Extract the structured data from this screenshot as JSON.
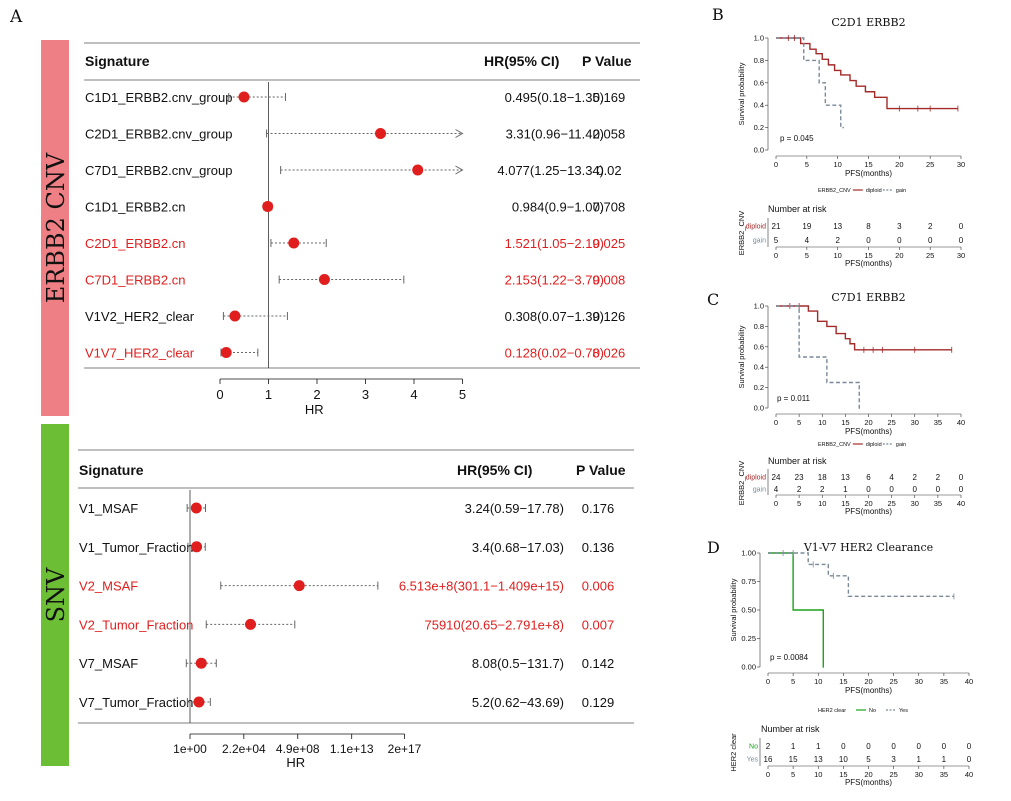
{
  "panels": {
    "A": "A",
    "B": "B",
    "C": "C",
    "D": "D"
  },
  "colors": {
    "red": "#e01e1e",
    "pink_bar": "#ee7f84",
    "green_bar": "#6cbf35",
    "km_red": "#a42a2a",
    "km_gray": "#7a8a99",
    "km_green": "#1aa21a"
  },
  "forest_cnv": {
    "side_label": "ERBB2 CNV",
    "header": {
      "signature": "Signature",
      "hr": "HR(95% CI)",
      "p": "P Value"
    },
    "rows": [
      {
        "label": "C1D1_ERBB2.cnv_group",
        "hr_text": "0.495(0.18−1.35)",
        "p": "0.169",
        "red": false,
        "hr": 0.495,
        "lo": 0.18,
        "hi": 1.35,
        "arrow": false
      },
      {
        "label": "C2D1_ERBB2.cnv_group",
        "hr_text": "3.31(0.96−11.42)",
        "p": "0.058",
        "red": false,
        "hr": 3.31,
        "lo": 0.96,
        "hi": 11.42,
        "arrow": true
      },
      {
        "label": "C7D1_ERBB2.cnv_group",
        "hr_text": "4.077(1.25−13.34)",
        "p": "0.02",
        "red": false,
        "hr": 4.077,
        "lo": 1.25,
        "hi": 13.34,
        "arrow": true
      },
      {
        "label": "C1D1_ERBB2.cn",
        "hr_text": "0.984(0.9−1.07)",
        "p": "0.708",
        "red": false,
        "hr": 0.984,
        "lo": 0.9,
        "hi": 1.07,
        "arrow": false
      },
      {
        "label": "C2D1_ERBB2.cn",
        "hr_text": "1.521(1.05−2.19)",
        "p": "0.025",
        "red": true,
        "hr": 1.521,
        "lo": 1.05,
        "hi": 2.19,
        "arrow": false
      },
      {
        "label": "C7D1_ERBB2.cn",
        "hr_text": "2.153(1.22−3.79)",
        "p": "0.008",
        "red": true,
        "hr": 2.153,
        "lo": 1.22,
        "hi": 3.79,
        "arrow": false
      },
      {
        "label": "V1V2_HER2_clear",
        "hr_text": "0.308(0.07−1.39)",
        "p": "0.126",
        "red": false,
        "hr": 0.308,
        "lo": 0.07,
        "hi": 1.39,
        "arrow": false
      },
      {
        "label": "V1V7_HER2_clear",
        "hr_text": "0.128(0.02−0.78)",
        "p": "0.026",
        "red": true,
        "hr": 0.128,
        "lo": 0.02,
        "hi": 0.78,
        "arrow": false
      }
    ],
    "axis": {
      "ticks": [
        "0",
        "1",
        "2",
        "3",
        "4",
        "5"
      ],
      "xlabel": "HR",
      "xlim": [
        0,
        5
      ],
      "ref": 1
    }
  },
  "forest_snv": {
    "side_label": "SNV",
    "header": {
      "signature": "Signature",
      "hr": "HR(95% CI)",
      "p": "P Value"
    },
    "rows": [
      {
        "label": "V1_MSAF",
        "hr_text": "3.24(0.59−17.78)",
        "p": "0.176",
        "red": false,
        "log10_hr": 0.51,
        "log10_lo": -0.23,
        "log10_hi": 1.25
      },
      {
        "label": "V1_Tumor_Fraction",
        "hr_text": "3.4(0.68−17.03)",
        "p": "0.136",
        "red": false,
        "log10_hr": 0.53,
        "log10_lo": -0.17,
        "log10_hi": 1.23
      },
      {
        "label": "V2_MSAF",
        "hr_text": "6.513e+8(301.1−1.409e+15)",
        "p": "0.006",
        "red": true,
        "log10_hr": 8.81,
        "log10_lo": 2.48,
        "log10_hi": 15.15
      },
      {
        "label": "V2_Tumor_Fraction",
        "hr_text": "75910(20.65−2.791e+8)",
        "p": "0.007",
        "red": true,
        "log10_hr": 4.88,
        "log10_lo": 1.31,
        "log10_hi": 8.45
      },
      {
        "label": "V7_MSAF",
        "hr_text": "8.08(0.5−131.7)",
        "p": "0.142",
        "red": false,
        "log10_hr": 0.91,
        "log10_lo": -0.3,
        "log10_hi": 2.12
      },
      {
        "label": "V7_Tumor_Fraction",
        "hr_text": "5.2(0.62−43.69)",
        "p": "0.129",
        "red": false,
        "log10_hr": 0.72,
        "log10_lo": -0.21,
        "log10_hi": 1.64
      }
    ],
    "axis": {
      "ticks": [
        "1e+00",
        "2.2e+04",
        "4.9e+08",
        "1.1e+13",
        "2e+17"
      ],
      "tick_log10": [
        0,
        4.34,
        8.69,
        13.04,
        17.3
      ],
      "xlabel": "HR",
      "xlim_log10": [
        -0.3,
        17.3
      ]
    }
  },
  "km_B": {
    "title": "C2D1 ERBB2",
    "ylabel": "Survival probability",
    "xlabel": "PFS(months)",
    "xmax": 30,
    "xticks": [
      "0",
      "5",
      "10",
      "15",
      "20",
      "25",
      "30"
    ],
    "xtick_vals": [
      0,
      5,
      10,
      15,
      20,
      25,
      30
    ],
    "yticks": [
      "0.0",
      "0.2",
      "0.4",
      "0.6",
      "0.8",
      "1.0"
    ],
    "pval": "p = 0.045",
    "legend": {
      "title": "ERBB2_CNV",
      "items": [
        "diploid",
        "gain"
      ]
    },
    "risk": {
      "title": "Number at risk",
      "ylabel": "ERBB2_CNV",
      "groups": [
        "diploid",
        "gain"
      ],
      "rows": [
        [
          "21",
          "19",
          "13",
          "8",
          "3",
          "2",
          "0"
        ],
        [
          "5",
          "4",
          "2",
          "0",
          "0",
          "0",
          "0"
        ]
      ]
    },
    "curves": [
      {
        "name": "diploid",
        "color": "#a42a2a",
        "dash": false,
        "steps": [
          [
            0,
            1
          ],
          [
            4,
            0.95
          ],
          [
            5.5,
            0.9
          ],
          [
            6.5,
            0.86
          ],
          [
            7.5,
            0.81
          ],
          [
            8.5,
            0.76
          ],
          [
            9.5,
            0.71
          ],
          [
            10.5,
            0.67
          ],
          [
            12,
            0.62
          ],
          [
            13,
            0.57
          ],
          [
            14.5,
            0.52
          ],
          [
            16,
            0.47
          ],
          [
            18,
            0.37
          ],
          [
            29.5,
            0.37
          ]
        ],
        "censor": [
          [
            2,
            1
          ],
          [
            3,
            1
          ],
          [
            20,
            0.37
          ],
          [
            23,
            0.37
          ],
          [
            25,
            0.37
          ],
          [
            29.5,
            0.37
          ]
        ]
      },
      {
        "name": "gain",
        "color": "#7a8a99",
        "dash": true,
        "steps": [
          [
            0,
            1
          ],
          [
            4.5,
            0.8
          ],
          [
            7,
            0.6
          ],
          [
            8,
            0.4
          ],
          [
            10.5,
            0.2
          ],
          [
            11,
            0.2
          ]
        ],
        "censor": []
      }
    ]
  },
  "km_C": {
    "title": "C7D1 ERBB2",
    "ylabel": "Survival probability",
    "xlabel": "PFS(months)",
    "xmax": 40,
    "xticks": [
      "0",
      "5",
      "10",
      "15",
      "20",
      "25",
      "30",
      "35",
      "40"
    ],
    "xtick_vals": [
      0,
      5,
      10,
      15,
      20,
      25,
      30,
      35,
      40
    ],
    "yticks": [
      "0.0",
      "0.2",
      "0.4",
      "0.6",
      "0.8",
      "1.0"
    ],
    "pval": "p = 0.011",
    "legend": {
      "title": "ERBB2_CNV",
      "items": [
        "diploid",
        "gain"
      ]
    },
    "risk": {
      "title": "Number at risk",
      "ylabel": "ERBB2_CNV",
      "groups": [
        "diploid",
        "gain"
      ],
      "rows": [
        [
          "24",
          "23",
          "18",
          "13",
          "6",
          "4",
          "2",
          "2",
          "0"
        ],
        [
          "4",
          "2",
          "2",
          "1",
          "0",
          "0",
          "0",
          "0",
          "0"
        ]
      ]
    },
    "curves": [
      {
        "name": "diploid",
        "color": "#a42a2a",
        "dash": false,
        "steps": [
          [
            0,
            1
          ],
          [
            7,
            0.95
          ],
          [
            9,
            0.85
          ],
          [
            11,
            0.8
          ],
          [
            13,
            0.73
          ],
          [
            15,
            0.68
          ],
          [
            16,
            0.63
          ],
          [
            17,
            0.57
          ],
          [
            38,
            0.57
          ]
        ],
        "censor": [
          [
            3,
            1
          ],
          [
            5,
            1
          ],
          [
            19,
            0.57
          ],
          [
            21,
            0.57
          ],
          [
            23,
            0.57
          ],
          [
            30,
            0.57
          ],
          [
            38,
            0.57
          ]
        ]
      },
      {
        "name": "gain",
        "color": "#7a8a99",
        "dash": true,
        "steps": [
          [
            0,
            1
          ],
          [
            5,
            0.5
          ],
          [
            11,
            0.25
          ],
          [
            18,
            0
          ],
          [
            18.2,
            0
          ]
        ],
        "censor": []
      }
    ]
  },
  "km_D": {
    "title": "V1-V7 HER2 Clearance",
    "ylabel": "Survival probability",
    "xlabel": "PFS(months)",
    "xmax": 40,
    "xticks": [
      "0",
      "5",
      "10",
      "15",
      "20",
      "25",
      "30",
      "35",
      "40"
    ],
    "xtick_vals": [
      0,
      5,
      10,
      15,
      20,
      25,
      30,
      35,
      40
    ],
    "yticks": [
      "0.00",
      "0.25",
      "0.50",
      "0.75",
      "1.00"
    ],
    "ylim_labels": [
      0,
      0.25,
      0.5,
      0.75,
      1
    ],
    "pval": "p = 0.0084",
    "legend": {
      "title": "HER2 clear",
      "items": [
        "No",
        "Yes"
      ]
    },
    "risk": {
      "title": "Number at risk",
      "ylabel": "HER2 clear",
      "groups": [
        "No",
        "Yes"
      ],
      "rows": [
        [
          "2",
          "1",
          "1",
          "0",
          "0",
          "0",
          "0",
          "0",
          "0"
        ],
        [
          "16",
          "15",
          "13",
          "10",
          "5",
          "3",
          "1",
          "1",
          "0"
        ]
      ]
    },
    "curves": [
      {
        "name": "No",
        "color": "#1aa21a",
        "dash": false,
        "steps": [
          [
            0,
            1
          ],
          [
            5,
            0.5
          ],
          [
            11,
            0
          ],
          [
            11.1,
            0
          ]
        ],
        "censor": []
      },
      {
        "name": "Yes",
        "color": "#7a8a99",
        "dash": true,
        "steps": [
          [
            0,
            1
          ],
          [
            8,
            0.9
          ],
          [
            12,
            0.8
          ],
          [
            16,
            0.62
          ],
          [
            37,
            0.62
          ]
        ],
        "censor": [
          [
            3,
            1
          ],
          [
            5,
            1
          ],
          [
            9,
            0.9
          ],
          [
            13,
            0.8
          ],
          [
            37,
            0.62
          ]
        ]
      }
    ]
  }
}
